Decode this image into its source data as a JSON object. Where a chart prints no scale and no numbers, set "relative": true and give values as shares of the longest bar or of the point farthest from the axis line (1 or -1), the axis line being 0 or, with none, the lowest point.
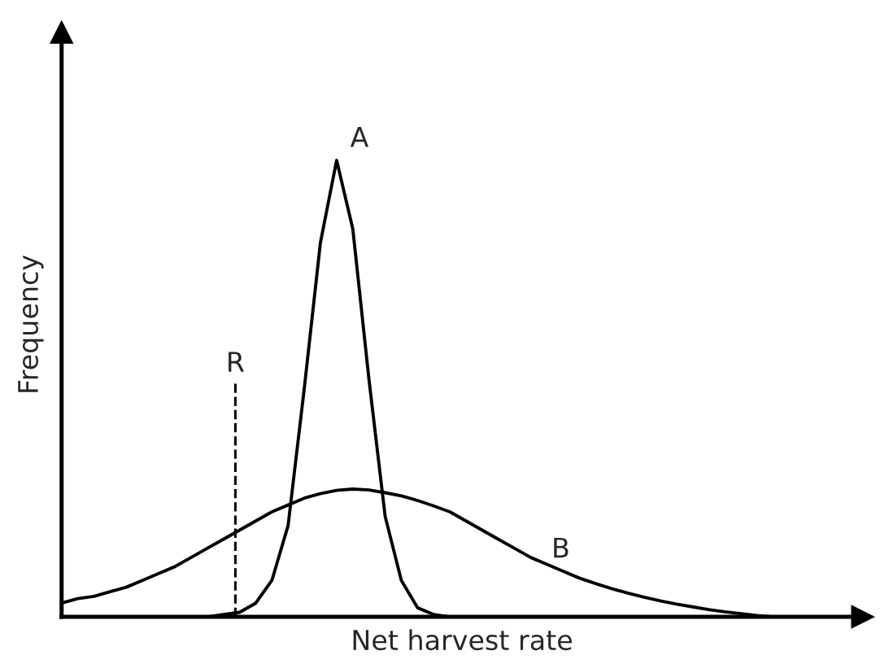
{
  "chart_data": {
    "type": "line",
    "relative": true,
    "xlabel": "Net harvest rate",
    "ylabel": "Frequency",
    "legend": false,
    "marker": "none",
    "line_style": "solid",
    "categories": [
      null,
      null,
      null,
      null,
      null,
      null,
      null,
      null,
      null,
      null,
      null,
      null,
      null,
      null,
      null,
      null,
      null,
      null,
      null,
      null,
      null,
      null,
      null,
      null,
      null,
      null,
      null,
      null,
      null,
      null,
      null,
      null,
      null,
      null,
      null,
      null,
      null,
      null,
      null,
      null,
      null,
      null,
      null,
      null,
      null
    ],
    "series": [
      {
        "name": "A",
        "color": "#000000",
        "values": [
          null,
          null,
          null,
          null,
          null,
          null,
          null,
          null,
          null,
          0,
          0.005,
          0.01,
          0.03,
          0.08,
          0.2,
          0.5,
          0.82,
          1.0,
          0.85,
          0.52,
          0.22,
          0.08,
          0.02,
          0.005,
          0,
          null,
          null,
          null,
          null,
          null,
          null,
          null,
          null,
          null,
          null,
          null,
          null,
          null,
          null,
          null,
          null,
          null,
          null,
          null,
          null
        ]
      },
      {
        "name": "B",
        "color": "#000000",
        "values": [
          0.03,
          0.04,
          0.045,
          0.055,
          0.065,
          0.08,
          0.095,
          0.11,
          0.13,
          0.15,
          0.17,
          0.19,
          0.21,
          0.23,
          0.245,
          0.26,
          0.27,
          0.277,
          0.28,
          0.278,
          0.272,
          0.265,
          0.255,
          0.243,
          0.23,
          0.21,
          0.19,
          0.17,
          0.15,
          0.13,
          0.115,
          0.1,
          0.085,
          0.073,
          0.062,
          0.052,
          0.043,
          0.035,
          0.028,
          0.022,
          0.016,
          0.011,
          0.007,
          0.003,
          0
        ]
      }
    ],
    "annotations": [
      "R"
    ]
  }
}
